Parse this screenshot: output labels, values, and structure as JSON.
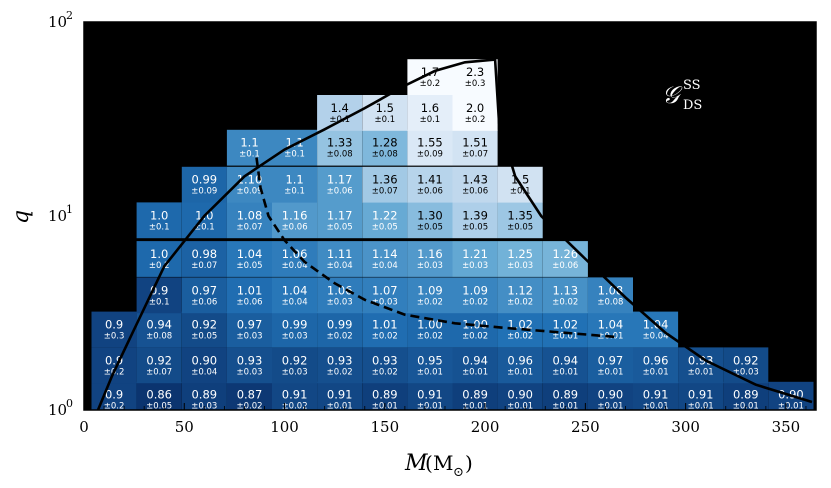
{
  "chart_data": {
    "type": "heatmap",
    "xlabel": "M",
    "xunit": "M",
    "xunit_sub": "⊙",
    "ylabel": "q",
    "xlim": [
      0,
      365
    ],
    "ylim_log10": [
      0,
      2
    ],
    "xticks": [
      0,
      50,
      100,
      150,
      200,
      250,
      300,
      350
    ],
    "xtick_labels": [
      "0",
      "50",
      "100",
      "150",
      "200",
      "250",
      "300",
      "350"
    ],
    "yticks": [
      {
        "value": 1,
        "base": "10",
        "exp": "0"
      },
      {
        "value": 10,
        "base": "10",
        "exp": "1"
      },
      {
        "value": 100,
        "base": "10",
        "exp": "2"
      }
    ],
    "annotation": {
      "text": "𝒢",
      "sup": "SS",
      "sub": "DS"
    },
    "background_color": "#000000",
    "colormap": {
      "low": 0.85,
      "high": 1.7
    },
    "cells": [
      {
        "x": 15,
        "q": 1.13,
        "v": "0.9",
        "e": "±0.2"
      },
      {
        "x": 37.5,
        "q": 1.13,
        "v": "0.86",
        "e": "±0.05"
      },
      {
        "x": 60,
        "q": 1.13,
        "v": "0.89",
        "e": "±0.03"
      },
      {
        "x": 82.5,
        "q": 1.13,
        "v": "0.87",
        "e": "±0.02"
      },
      {
        "x": 105,
        "q": 1.13,
        "v": "0.91",
        "e": "±0.02"
      },
      {
        "x": 127.5,
        "q": 1.13,
        "v": "0.91",
        "e": "±0.01"
      },
      {
        "x": 150,
        "q": 1.13,
        "v": "0.89",
        "e": "±0.01"
      },
      {
        "x": 172.5,
        "q": 1.13,
        "v": "0.91",
        "e": "±0.01"
      },
      {
        "x": 195,
        "q": 1.13,
        "v": "0.89",
        "e": "±0.01"
      },
      {
        "x": 217.5,
        "q": 1.13,
        "v": "0.90",
        "e": "±0.01"
      },
      {
        "x": 240,
        "q": 1.13,
        "v": "0.89",
        "e": "±0.01"
      },
      {
        "x": 262.5,
        "q": 1.13,
        "v": "0.90",
        "e": "±0.01"
      },
      {
        "x": 285,
        "q": 1.13,
        "v": "0.91",
        "e": "±0.01"
      },
      {
        "x": 307.5,
        "q": 1.13,
        "v": "0.91",
        "e": "±0.01"
      },
      {
        "x": 330,
        "q": 1.13,
        "v": "0.89",
        "e": "±0.01"
      },
      {
        "x": 352.5,
        "q": 1.13,
        "v": "0.90",
        "e": "±0.01"
      },
      {
        "x": 15,
        "q": 1.7,
        "v": "0.9",
        "e": "±0.2"
      },
      {
        "x": 37.5,
        "q": 1.7,
        "v": "0.92",
        "e": "±0.07"
      },
      {
        "x": 60,
        "q": 1.7,
        "v": "0.90",
        "e": "±0.04"
      },
      {
        "x": 82.5,
        "q": 1.7,
        "v": "0.93",
        "e": "±0.03"
      },
      {
        "x": 105,
        "q": 1.7,
        "v": "0.92",
        "e": "±0.03"
      },
      {
        "x": 127.5,
        "q": 1.7,
        "v": "0.93",
        "e": "±0.02"
      },
      {
        "x": 150,
        "q": 1.7,
        "v": "0.93",
        "e": "±0.02"
      },
      {
        "x": 172.5,
        "q": 1.7,
        "v": "0.95",
        "e": "±0.01"
      },
      {
        "x": 195,
        "q": 1.7,
        "v": "0.94",
        "e": "±0.01"
      },
      {
        "x": 217.5,
        "q": 1.7,
        "v": "0.96",
        "e": "±0.01"
      },
      {
        "x": 240,
        "q": 1.7,
        "v": "0.94",
        "e": "±0.01"
      },
      {
        "x": 262.5,
        "q": 1.7,
        "v": "0.97",
        "e": "±0.01"
      },
      {
        "x": 285,
        "q": 1.7,
        "v": "0.96",
        "e": "±0.01"
      },
      {
        "x": 307.5,
        "q": 1.7,
        "v": "0.93",
        "e": "±0.01"
      },
      {
        "x": 330,
        "q": 1.7,
        "v": "0.92",
        "e": "±0.03"
      },
      {
        "x": 15,
        "q": 2.6,
        "v": "0.9",
        "e": "±0.3"
      },
      {
        "x": 37.5,
        "q": 2.6,
        "v": "0.94",
        "e": "±0.08"
      },
      {
        "x": 60,
        "q": 2.6,
        "v": "0.92",
        "e": "±0.05"
      },
      {
        "x": 82.5,
        "q": 2.6,
        "v": "0.97",
        "e": "±0.03"
      },
      {
        "x": 105,
        "q": 2.6,
        "v": "0.99",
        "e": "±0.03"
      },
      {
        "x": 127.5,
        "q": 2.6,
        "v": "0.99",
        "e": "±0.02"
      },
      {
        "x": 150,
        "q": 2.6,
        "v": "1.01",
        "e": "±0.02"
      },
      {
        "x": 172.5,
        "q": 2.6,
        "v": "1.00",
        "e": "±0.02"
      },
      {
        "x": 195,
        "q": 2.6,
        "v": "1.00",
        "e": "±0.02"
      },
      {
        "x": 217.5,
        "q": 2.6,
        "v": "1.02",
        "e": "±0.02"
      },
      {
        "x": 240,
        "q": 2.6,
        "v": "1.02",
        "e": "±0.01"
      },
      {
        "x": 262.5,
        "q": 2.6,
        "v": "1.04",
        "e": "±0.01"
      },
      {
        "x": 285,
        "q": 2.6,
        "v": "1.04",
        "e": "±0.04"
      },
      {
        "x": 37.5,
        "q": 3.9,
        "v": "0.9",
        "e": "±0.1"
      },
      {
        "x": 60,
        "q": 3.9,
        "v": "0.97",
        "e": "±0.06"
      },
      {
        "x": 82.5,
        "q": 3.9,
        "v": "1.01",
        "e": "±0.06"
      },
      {
        "x": 105,
        "q": 3.9,
        "v": "1.04",
        "e": "±0.04"
      },
      {
        "x": 127.5,
        "q": 3.9,
        "v": "1.06",
        "e": "±0.03"
      },
      {
        "x": 150,
        "q": 3.9,
        "v": "1.07",
        "e": "±0.03"
      },
      {
        "x": 172.5,
        "q": 3.9,
        "v": "1.09",
        "e": "±0.02"
      },
      {
        "x": 195,
        "q": 3.9,
        "v": "1.09",
        "e": "±0.02"
      },
      {
        "x": 217.5,
        "q": 3.9,
        "v": "1.12",
        "e": "±0.02"
      },
      {
        "x": 240,
        "q": 3.9,
        "v": "1.13",
        "e": "±0.02"
      },
      {
        "x": 262.5,
        "q": 3.9,
        "v": "1.08",
        "e": "±0.08"
      },
      {
        "x": 37.5,
        "q": 6.0,
        "v": "1.0",
        "e": "±0.2"
      },
      {
        "x": 60,
        "q": 6.0,
        "v": "0.98",
        "e": "±0.07"
      },
      {
        "x": 82.5,
        "q": 6.0,
        "v": "1.04",
        "e": "±0.05"
      },
      {
        "x": 105,
        "q": 6.0,
        "v": "1.06",
        "e": "±0.04"
      },
      {
        "x": 127.5,
        "q": 6.0,
        "v": "1.11",
        "e": "±0.04"
      },
      {
        "x": 150,
        "q": 6.0,
        "v": "1.14",
        "e": "±0.04"
      },
      {
        "x": 172.5,
        "q": 6.0,
        "v": "1.16",
        "e": "±0.03"
      },
      {
        "x": 195,
        "q": 6.0,
        "v": "1.21",
        "e": "±0.03"
      },
      {
        "x": 217.5,
        "q": 6.0,
        "v": "1.25",
        "e": "±0.03"
      },
      {
        "x": 240,
        "q": 6.0,
        "v": "1.26",
        "e": "±0.06"
      },
      {
        "x": 37.5,
        "q": 9.5,
        "v": "1.0",
        "e": "±0.1"
      },
      {
        "x": 60,
        "q": 9.5,
        "v": "1.0",
        "e": "±0.1"
      },
      {
        "x": 82.5,
        "q": 9.5,
        "v": "1.08",
        "e": "±0.07"
      },
      {
        "x": 105,
        "q": 9.5,
        "v": "1.16",
        "e": "±0.06"
      },
      {
        "x": 127.5,
        "q": 9.5,
        "v": "1.17",
        "e": "±0.05"
      },
      {
        "x": 150,
        "q": 9.5,
        "v": "1.22",
        "e": "±0.05"
      },
      {
        "x": 172.5,
        "q": 9.5,
        "v": "1.30",
        "e": "±0.05"
      },
      {
        "x": 195,
        "q": 9.5,
        "v": "1.39",
        "e": "±0.05"
      },
      {
        "x": 217.5,
        "q": 9.5,
        "v": "1.35",
        "e": "±0.05"
      },
      {
        "x": 60,
        "q": 14.5,
        "v": "0.99",
        "e": "±0.09"
      },
      {
        "x": 82.5,
        "q": 14.5,
        "v": "1.10",
        "e": "±0.09"
      },
      {
        "x": 105,
        "q": 14.5,
        "v": "1.1",
        "e": "±0.1"
      },
      {
        "x": 127.5,
        "q": 14.5,
        "v": "1.17",
        "e": "±0.06"
      },
      {
        "x": 150,
        "q": 14.5,
        "v": "1.36",
        "e": "±0.07"
      },
      {
        "x": 172.5,
        "q": 14.5,
        "v": "1.41",
        "e": "±0.06"
      },
      {
        "x": 195,
        "q": 14.5,
        "v": "1.43",
        "e": "±0.06"
      },
      {
        "x": 217.5,
        "q": 14.5,
        "v": "1.5",
        "e": "±0.1"
      },
      {
        "x": 82.5,
        "q": 22.5,
        "v": "1.1",
        "e": "±0.1"
      },
      {
        "x": 105,
        "q": 22.5,
        "v": "1.1",
        "e": "±0.1"
      },
      {
        "x": 127.5,
        "q": 22.5,
        "v": "1.33",
        "e": "±0.08"
      },
      {
        "x": 150,
        "q": 22.5,
        "v": "1.28",
        "e": "±0.08"
      },
      {
        "x": 172.5,
        "q": 22.5,
        "v": "1.55",
        "e": "±0.09"
      },
      {
        "x": 195,
        "q": 22.5,
        "v": "1.51",
        "e": "±0.07"
      },
      {
        "x": 127.5,
        "q": 34,
        "v": "1.4",
        "e": "±0.1"
      },
      {
        "x": 150,
        "q": 34,
        "v": "1.5",
        "e": "±0.1"
      },
      {
        "x": 172.5,
        "q": 34,
        "v": "1.6",
        "e": "±0.1"
      },
      {
        "x": 195,
        "q": 34,
        "v": "2.0",
        "e": "±0.2"
      },
      {
        "x": 172.5,
        "q": 52,
        "v": "1.7",
        "e": "±0.2"
      },
      {
        "x": 195,
        "q": 52,
        "v": "2.3",
        "e": "±0.3"
      }
    ],
    "curves": [
      {
        "name": "solid-boundary",
        "style": "solid",
        "points": [
          [
            7,
            1.0
          ],
          [
            14,
            1.5
          ],
          [
            25,
            2.6
          ],
          [
            40,
            5.5
          ],
          [
            60,
            10
          ],
          [
            80,
            16
          ],
          [
            100,
            22
          ],
          [
            120,
            28
          ],
          [
            140,
            36
          ],
          [
            160,
            47
          ],
          [
            175,
            56
          ],
          [
            190,
            62
          ],
          [
            205,
            64
          ],
          [
            207,
            30
          ],
          [
            215,
            16
          ],
          [
            228,
            10
          ],
          [
            250,
            6
          ],
          [
            270,
            3.8
          ],
          [
            290,
            2.5
          ],
          [
            310,
            1.8
          ],
          [
            335,
            1.35
          ],
          [
            363,
            1.1
          ]
        ]
      },
      {
        "name": "dashed-line",
        "style": "dashed",
        "points": [
          [
            86,
            20
          ],
          [
            88,
            14
          ],
          [
            92,
            10
          ],
          [
            100,
            7.5
          ],
          [
            110,
            5.8
          ],
          [
            125,
            4.5
          ],
          [
            140,
            3.7
          ],
          [
            160,
            3.1
          ],
          [
            185,
            2.8
          ],
          [
            210,
            2.65
          ],
          [
            240,
            2.5
          ],
          [
            265,
            2.38
          ]
        ]
      }
    ]
  }
}
